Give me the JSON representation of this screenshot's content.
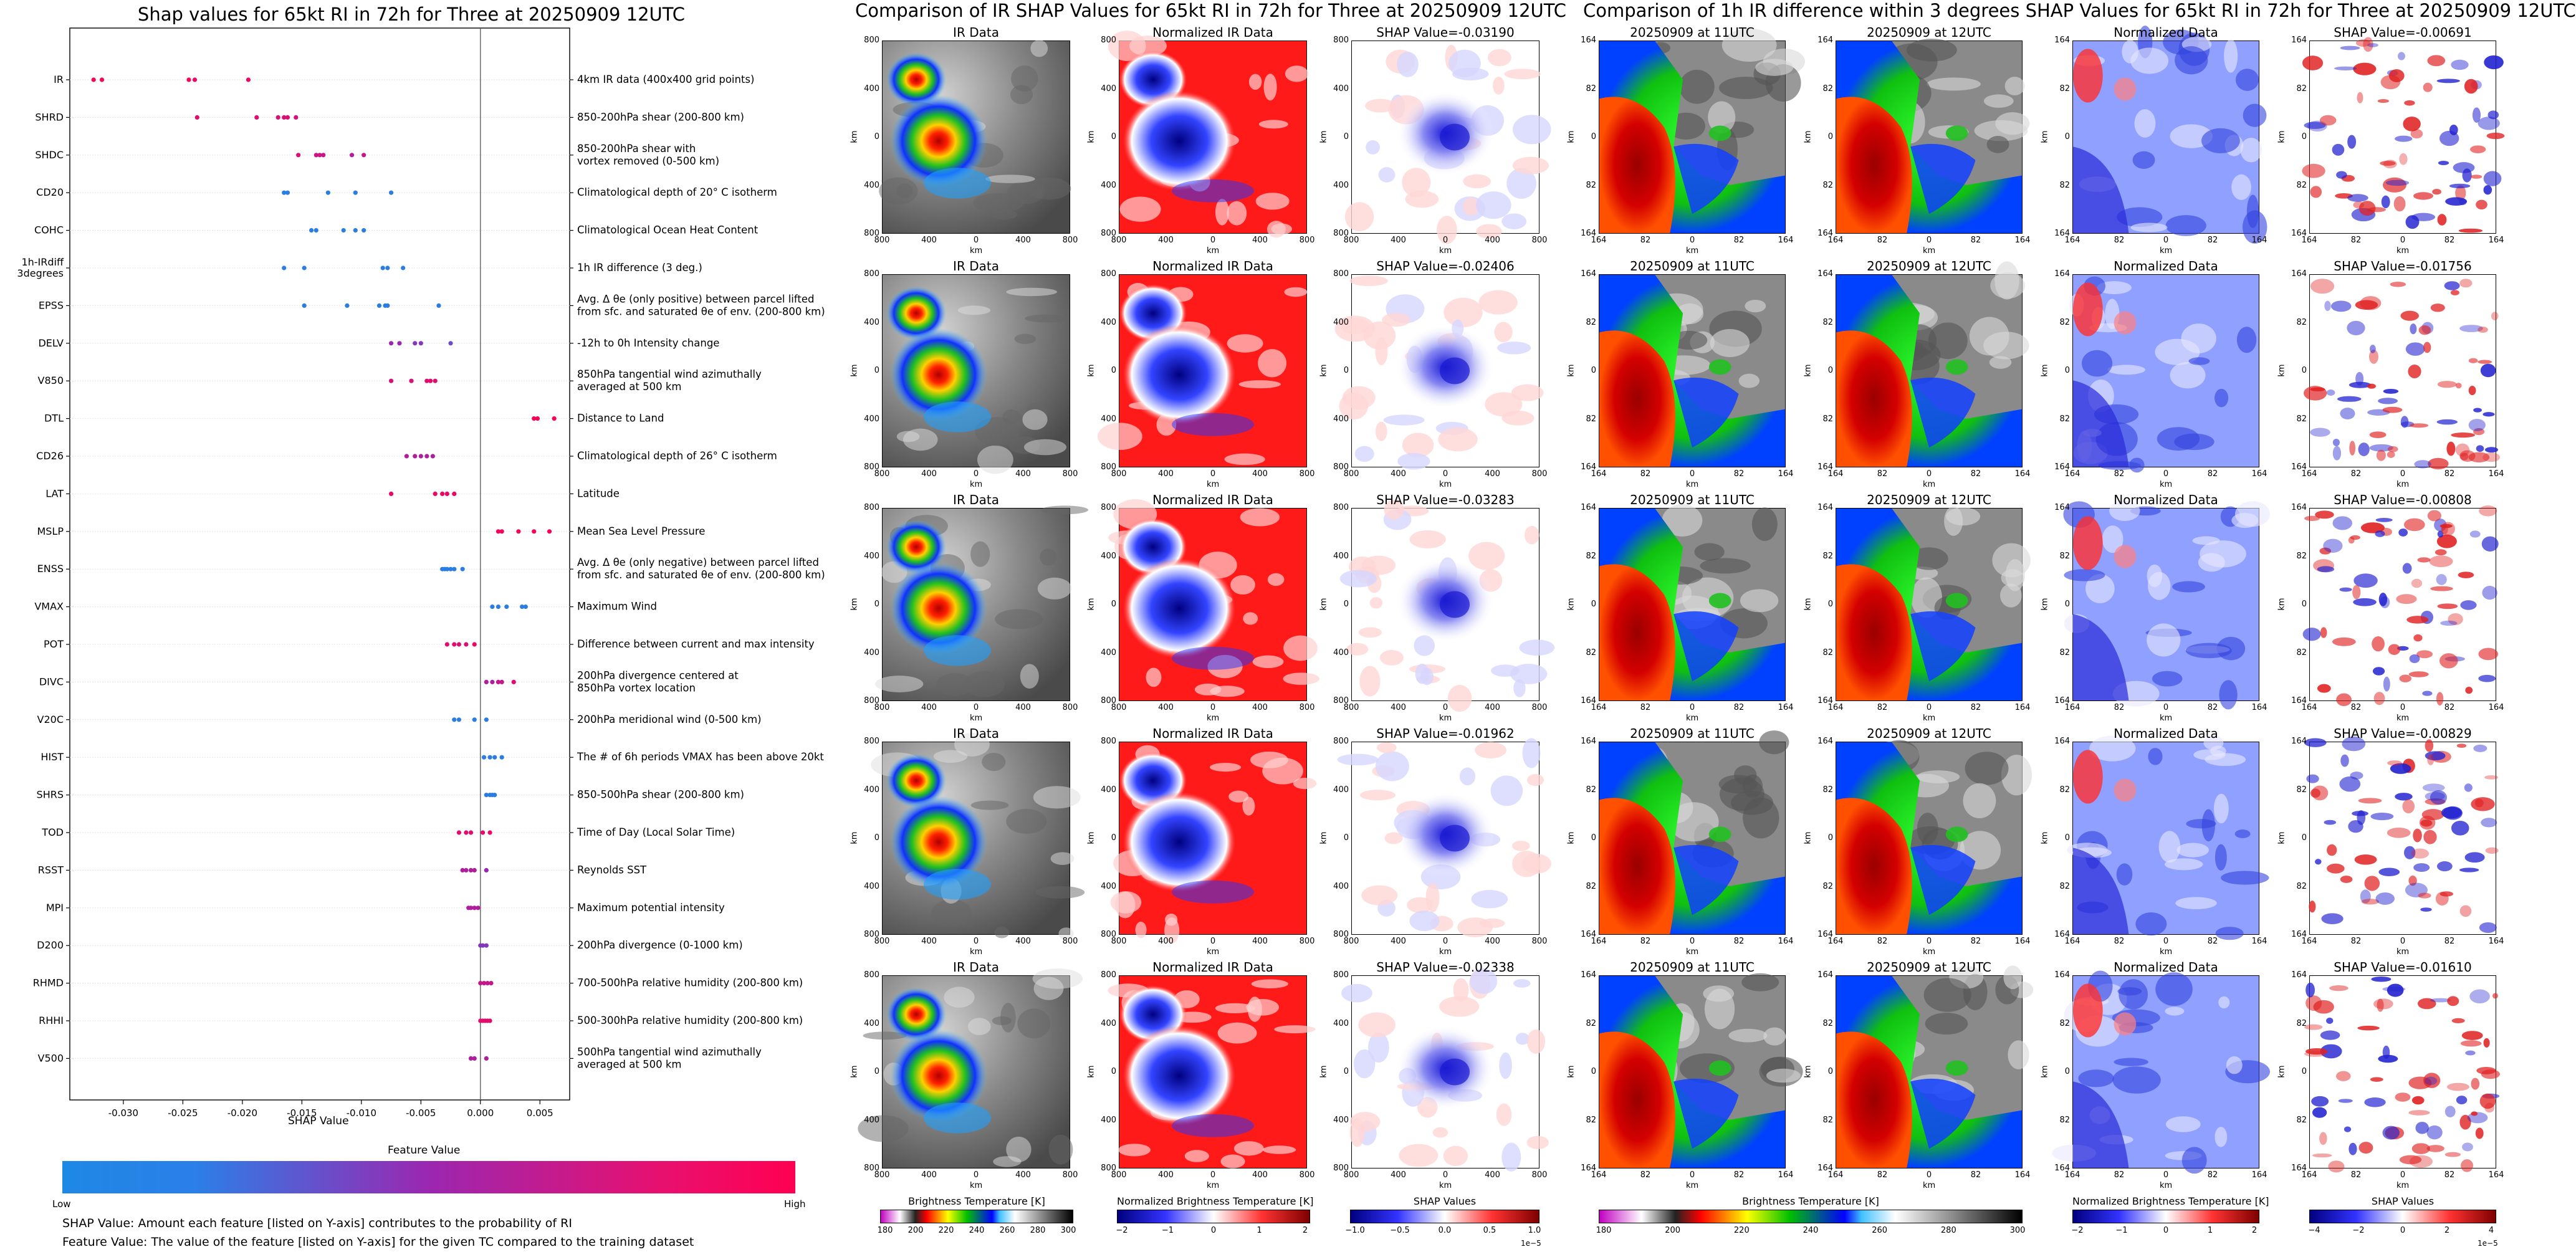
{
  "shap_panel": {
    "title": "Shap values for 65kt RI in 72h for Three at 20250909 12UTC",
    "xlabel": "SHAP Value",
    "xticks": [
      "-0.030",
      "-0.025",
      "-0.020",
      "-0.015",
      "-0.010",
      "-0.005",
      "0.000",
      "0.005"
    ],
    "colorbar_title": "Feature Value",
    "colorbar_low": "Low",
    "colorbar_high": "High",
    "colors": {
      "low": "#1e88e5",
      "mid": "#9b27b0",
      "high": "#ff0052"
    },
    "notes": [
      "SHAP Value: Amount each feature [listed on Y-axis] contributes to the probability of RI",
      "Feature Value: The value of the feature [listed on Y-axis] for the given TC compared to the training dataset"
    ]
  },
  "chart_data": {
    "type": "scatter",
    "title": "Shap values for 65kt RI in 72h for Three at 20250909 12UTC",
    "xlabel": "SHAP Value",
    "xlim": [
      -0.0345,
      0.0075
    ],
    "color_scale": "Feature Value (Low=blue, High=pink)",
    "features": [
      {
        "name": "IR",
        "desc": "4km IR data (400x400 grid points)",
        "x": [
          -0.0325,
          -0.0318,
          -0.0245,
          -0.024,
          -0.0195
        ],
        "c": [
          0.95,
          0.95,
          0.95,
          0.9,
          0.92
        ]
      },
      {
        "name": "SHRD",
        "desc": "850-200hPa shear (200-800 km)",
        "x": [
          -0.0238,
          -0.0188,
          -0.017,
          -0.0165,
          -0.0162,
          -0.0155
        ],
        "c": [
          0.85,
          0.85,
          0.8,
          0.8,
          0.82,
          0.8
        ]
      },
      {
        "name": "SHDC",
        "desc": "850-200hPa shear with\nvortex removed (0-500 km)",
        "x": [
          -0.0153,
          -0.0138,
          -0.0135,
          -0.0132,
          -0.0108,
          -0.0098
        ],
        "c": [
          0.8,
          0.75,
          0.75,
          0.72,
          0.6,
          0.7
        ]
      },
      {
        "name": "CD20",
        "desc": "Climatological depth of 20° C isotherm",
        "x": [
          -0.0165,
          -0.0162,
          -0.0128,
          -0.0105,
          -0.0075
        ],
        "c": [
          0.05,
          0.05,
          0.05,
          0.05,
          0.05
        ]
      },
      {
        "name": "COHC",
        "desc": "Climatological Ocean Heat Content",
        "x": [
          -0.0142,
          -0.0138,
          -0.0115,
          -0.0105,
          -0.0098
        ],
        "c": [
          0.05,
          0.05,
          0.05,
          0.05,
          0.05
        ]
      },
      {
        "name": "1h-IRdiff\n3degrees",
        "desc": "1h IR difference (3 deg.)",
        "x": [
          -0.0165,
          -0.0148,
          -0.0082,
          -0.0078,
          -0.0065
        ],
        "c": [
          0.05,
          0.05,
          0.05,
          0.05,
          0.05
        ]
      },
      {
        "name": "EPSS",
        "desc": "Avg. Δ θe (only positive) between parcel lifted\nfrom sfc. and saturated θe of env. (200-800 km)",
        "x": [
          -0.0148,
          -0.0112,
          -0.0085,
          -0.008,
          -0.0078,
          -0.0035
        ],
        "c": [
          0.05,
          0.05,
          0.05,
          0.05,
          0.05,
          0.05
        ]
      },
      {
        "name": "DELV",
        "desc": "-12h to 0h Intensity change",
        "x": [
          -0.0075,
          -0.0068,
          -0.0055,
          -0.005,
          -0.0025
        ],
        "c": [
          0.5,
          0.5,
          0.4,
          0.4,
          0.3
        ]
      },
      {
        "name": "V850",
        "desc": "850hPa tangential wind azimuthally\naveraged at 500 km",
        "x": [
          -0.0075,
          -0.0058,
          -0.0045,
          -0.0042,
          -0.0038
        ],
        "c": [
          0.8,
          0.8,
          0.85,
          0.85,
          0.85
        ]
      },
      {
        "name": "DTL",
        "desc": "Distance to Land",
        "x": [
          0.0045,
          0.0048,
          0.0062
        ],
        "c": [
          0.95,
          0.95,
          0.95
        ]
      },
      {
        "name": "CD26",
        "desc": "Climatological depth of 26° C isotherm",
        "x": [
          -0.0062,
          -0.0055,
          -0.005,
          -0.0045,
          -0.004
        ],
        "c": [
          0.6,
          0.6,
          0.6,
          0.6,
          0.6
        ]
      },
      {
        "name": "LAT",
        "desc": "Latitude",
        "x": [
          -0.0075,
          -0.0038,
          -0.0032,
          -0.0028,
          -0.0022
        ],
        "c": [
          0.9,
          0.9,
          0.9,
          0.9,
          0.9
        ]
      },
      {
        "name": "MSLP",
        "desc": "Mean Sea Level Pressure",
        "x": [
          0.0015,
          0.0018,
          0.0032,
          0.0045,
          0.0058
        ],
        "c": [
          0.95,
          0.95,
          0.95,
          0.95,
          0.95
        ]
      },
      {
        "name": "ENSS",
        "desc": "Avg. Δ θe (only negative) between parcel lifted\nfrom sfc. and saturated θe of env. (200-800 km)",
        "x": [
          -0.0032,
          -0.003,
          -0.0028,
          -0.0025,
          -0.0022,
          -0.0015
        ],
        "c": [
          0.05,
          0.05,
          0.05,
          0.05,
          0.05,
          0.05
        ]
      },
      {
        "name": "VMAX",
        "desc": "Maximum Wind",
        "x": [
          0.001,
          0.0015,
          0.0022,
          0.0035,
          0.0038
        ],
        "c": [
          0.05,
          0.05,
          0.05,
          0.05,
          0.05
        ]
      },
      {
        "name": "POT",
        "desc": "Difference between current and max intensity",
        "x": [
          -0.0028,
          -0.0022,
          -0.0018,
          -0.0012,
          -0.0005
        ],
        "c": [
          0.85,
          0.85,
          0.8,
          0.8,
          0.9
        ]
      },
      {
        "name": "DIVC",
        "desc": "200hPa divergence centered at\n850hPa vortex location",
        "x": [
          0.0005,
          0.001,
          0.0015,
          0.0018,
          0.0028
        ],
        "c": [
          0.6,
          0.6,
          0.7,
          0.7,
          0.85
        ]
      },
      {
        "name": "V20C",
        "desc": "200hPa meridional wind (0-500 km)",
        "x": [
          -0.0022,
          -0.0018,
          -0.0005,
          0.0005
        ],
        "c": [
          0.05,
          0.05,
          0.05,
          0.05
        ]
      },
      {
        "name": "HIST",
        "desc": "The # of 6h periods VMAX has been above 20kt",
        "x": [
          0.0003,
          0.0008,
          0.0012,
          0.0018
        ],
        "c": [
          0.05,
          0.05,
          0.05,
          0.05
        ]
      },
      {
        "name": "SHRS",
        "desc": "850-500hPa shear (200-800 km)",
        "x": [
          0.0005,
          0.0008,
          0.001,
          0.0012
        ],
        "c": [
          0.05,
          0.05,
          0.05,
          0.05
        ]
      },
      {
        "name": "TOD",
        "desc": "Time of Day (Local Solar Time)",
        "x": [
          -0.0018,
          -0.0012,
          -0.0008,
          0.0002,
          0.0008
        ],
        "c": [
          0.85,
          0.85,
          0.85,
          0.85,
          0.9
        ]
      },
      {
        "name": "RSST",
        "desc": "Reynolds SST",
        "x": [
          -0.0015,
          -0.0012,
          -0.0008,
          -0.0005,
          0.0005
        ],
        "c": [
          0.6,
          0.6,
          0.6,
          0.6,
          0.5
        ]
      },
      {
        "name": "MPI",
        "desc": "Maximum potential intensity",
        "x": [
          -0.001,
          -0.0008,
          -0.0005,
          -0.0002
        ],
        "c": [
          0.6,
          0.6,
          0.6,
          0.6
        ]
      },
      {
        "name": "D200",
        "desc": "200hPa divergence (0-1000 km)",
        "x": [
          0.0,
          0.0002,
          0.0005
        ],
        "c": [
          0.4,
          0.4,
          0.4
        ]
      },
      {
        "name": "RHMD",
        "desc": "700-500hPa relative humidity (200-800 km)",
        "x": [
          0.0,
          0.0003,
          0.0006,
          0.0009
        ],
        "c": [
          0.7,
          0.7,
          0.7,
          0.7
        ]
      },
      {
        "name": "RHHI",
        "desc": "500-300hPa relative humidity (200-800 km)",
        "x": [
          0.0,
          0.0002,
          0.0004,
          0.0006,
          0.0008
        ],
        "c": [
          0.85,
          0.85,
          0.85,
          0.85,
          0.85
        ]
      },
      {
        "name": "V500",
        "desc": "500hPa tangential wind azimuthally\naveraged at 500 km",
        "x": [
          -0.0008,
          -0.0005,
          0.0005
        ],
        "c": [
          0.6,
          0.6,
          0.6
        ]
      }
    ]
  },
  "ir_section": {
    "title": "Comparison of IR SHAP Values for 65kt RI in 72h for Three at 20250909 12UTC",
    "col_titles": [
      "IR Data",
      "Normalized IR Data"
    ],
    "shap_titles": [
      "SHAP Value=-0.03190",
      "SHAP Value=-0.02406",
      "SHAP Value=-0.03283",
      "SHAP Value=-0.01962",
      "SHAP Value=-0.02338"
    ],
    "ylabel": "km",
    "xlabel": "km",
    "xticks": [
      "800",
      "400",
      "0",
      "400",
      "800"
    ],
    "yticks": [
      "800",
      "400",
      "0",
      "400",
      "800"
    ],
    "cbar1": {
      "label": "Brightness Temperature [K]",
      "ticks": [
        "180",
        "200",
        "220",
        "240",
        "260",
        "280",
        "300"
      ]
    },
    "cbar2": {
      "label": "Normalized Brightness Temperature [K]",
      "ticks": [
        "−2",
        "−1",
        "0",
        "1",
        "2"
      ]
    },
    "cbar3": {
      "label": "SHAP Values",
      "ticks": [
        "−1.0",
        "−0.5",
        "0.0",
        "0.5",
        "1.0"
      ],
      "exponent": "1e−5"
    }
  },
  "diff_section": {
    "title": "Comparison of 1h IR difference within 3 degrees SHAP Values for 65kt RI in 72h for Three at 20250909 12UTC",
    "col_titles": [
      "20250909 at 11UTC",
      "20250909 at 12UTC",
      "Normalized Data"
    ],
    "shap_titles": [
      "SHAP Value=-0.00691",
      "SHAP Value=-0.01756",
      "SHAP Value=-0.00808",
      "SHAP Value=-0.00829",
      "SHAP Value=-0.01610"
    ],
    "ylabel": "km",
    "xlabel": "km",
    "xticks": [
      "164",
      "82",
      "0",
      "82",
      "164"
    ],
    "yticks": [
      "164",
      "82",
      "0",
      "82",
      "164"
    ],
    "cbar1": {
      "label": "Brightness Temperature [K]",
      "ticks": [
        "180",
        "200",
        "220",
        "240",
        "260",
        "280",
        "300"
      ]
    },
    "cbar2": {
      "label": "Normalized Brightness Temperature [K]",
      "ticks": [
        "−2",
        "−1",
        "0",
        "1",
        "2"
      ]
    },
    "cbar3": {
      "label": "SHAP Values",
      "ticks": [
        "−4",
        "−2",
        "0",
        "2",
        "4"
      ],
      "exponent": "1e−5"
    }
  }
}
